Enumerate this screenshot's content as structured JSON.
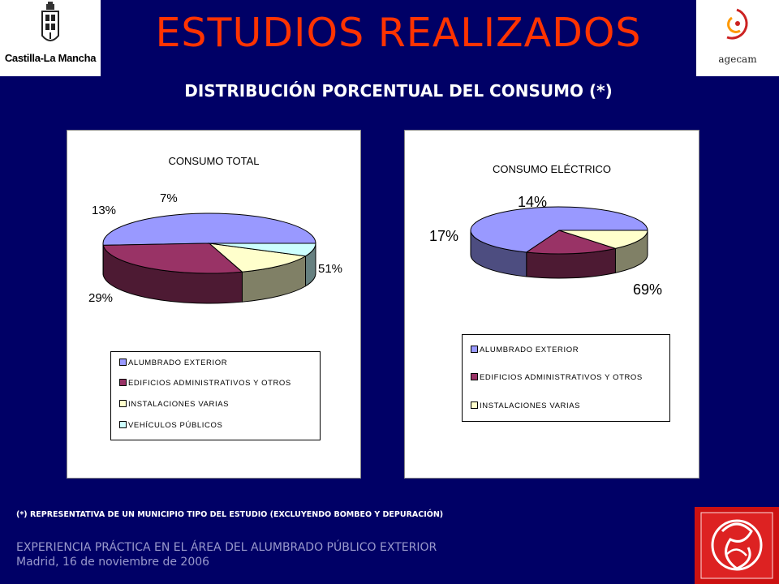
{
  "header": {
    "title": "ESTUDIOS REALIZADOS",
    "subtitle": "DISTRIBUCIÓN PORCENTUAL DEL CONSUMO (*)",
    "logo_left_text": "Castilla-La Mancha",
    "logo_right_text": "agecam"
  },
  "chart_data": [
    {
      "type": "pie",
      "title": "CONSUMO TOTAL",
      "categories": [
        "ALUMBRADO EXTERIOR",
        "EDIFICIOS ADMINISTRATIVOS Y OTROS",
        "INSTALACIONES VARIAS",
        "VEHÍCULOS PÚBLICOS"
      ],
      "values": [
        51,
        29,
        13,
        7
      ],
      "labels": [
        "51%",
        "29%",
        "13%",
        "7%"
      ],
      "colors": [
        "#9999ff",
        "#993366",
        "#ffffcc",
        "#ccffff"
      ],
      "legend_position": "bottom"
    },
    {
      "type": "pie",
      "title": "CONSUMO ELÉCTRICO",
      "categories": [
        "ALUMBRADO EXTERIOR",
        "EDIFICIOS ADMINISTRATIVOS Y OTROS",
        "INSTALACIONES VARIAS"
      ],
      "values": [
        69,
        17,
        14
      ],
      "labels": [
        "69%",
        "17%",
        "14%"
      ],
      "colors": [
        "#9999ff",
        "#993366",
        "#ffffcc"
      ],
      "legend_position": "bottom"
    }
  ],
  "footer": {
    "note": "(*) REPRESENTATIVA DE UN MUNICIPIO TIPO DEL ESTUDIO (EXCLUYENDO BOMBEO Y DEPURACIÓN)",
    "line1": "EXPERIENCIA PRÁCTICA EN EL ÁREA DEL ALUMBRADO PÚBLICO EXTERIOR",
    "line2": "Madrid, 16 de noviembre de 2006"
  },
  "icons": {
    "logo_left": "coat-of-arms-icon",
    "logo_right": "agecam-swirl-icon",
    "emblem": "monogram-emblem-icon"
  }
}
